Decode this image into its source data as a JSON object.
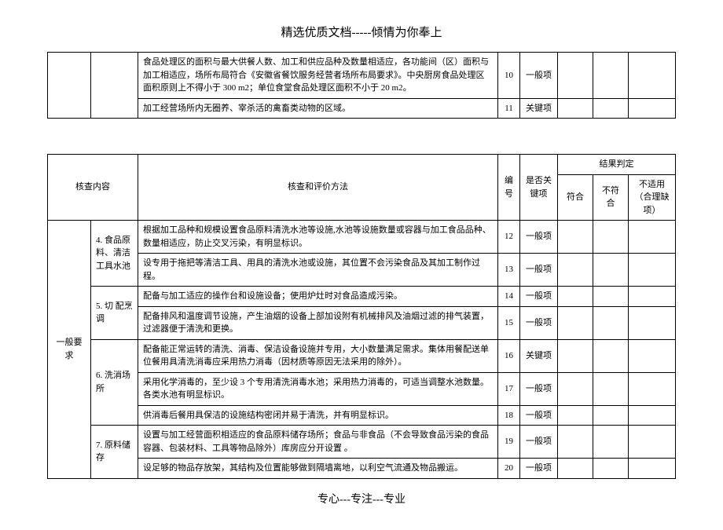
{
  "header": "精选优质文档-----倾情为你奉上",
  "footer": "专心---专注---专业",
  "table1": {
    "rows": [
      {
        "method": "食品处理区的面积与最大供餐人数、加工和供应品种及数量相适应，各功能间（区）面积与加工相适应，场所布局符合《安徽省餐饮服务经营者场所布局要求》。中央厨房食品处理区面积原则上不得小于 300 m2；单位食堂食品处理区面积不小于 20 m2。",
        "num": "10",
        "key": "一般项"
      },
      {
        "method": "加工经营场所内无圈养、宰杀活的禽畜类动物的区域。",
        "num": "11",
        "key": "关键项"
      }
    ]
  },
  "table2": {
    "head": {
      "content": "核查内容",
      "method": "核查和评价方法",
      "num": "编号",
      "key": "是否关键项",
      "result": "结果判定",
      "r1": "符合",
      "r2": "不符合",
      "r3": "不适用（合理缺项）"
    },
    "cat": "一般要求",
    "groups": [
      {
        "sub": "4. 食品原料、清洁工具水池",
        "rows": [
          {
            "method": "根据加工品种和规模设置食品原料清洗水池等设施,水池等设施数量或容器与加工食品品种、数量相适应，防止交叉污染，有明显标识。",
            "num": "12",
            "key": "一般项"
          },
          {
            "method": "设专用于拖把等清洁工具、用具的清洗水池或设施，其位置不会污染食品及其加工制作过程。",
            "num": "13",
            "key": "一般项"
          }
        ]
      },
      {
        "sub": "5. 切 配烹调",
        "rows": [
          {
            "method": "配备与加工适应的操作台和设施设备；使用炉灶时对食品造成污染。",
            "num": "14",
            "key": "一般项"
          },
          {
            "method": "配备排风和温度调节设施，产生油烟的设备上部加设附有机械排风及油烟过滤的排气装置，过滤器便于清洗和更换。",
            "num": "15",
            "key": "一般项"
          }
        ]
      },
      {
        "sub": "6. 洗消场所",
        "rows": [
          {
            "method": "配备能正常运转的清洗、消毒、保洁设备设施并专用，大小数量满足需求。集体用餐配送单位餐用具清洗消毒应采用热力消毒（因材质等原因无法采用的除外）。",
            "num": "16",
            "key": "关键项"
          },
          {
            "method": "采用化学消毒的，至少设 3 个专用清洗消毒水池；采用热力消毒的，可适当调整水池数量。各类水池有明显标识。",
            "num": "17",
            "key": "一般项"
          },
          {
            "method": "供消毒后餐用具保洁的设施结构密闭并易于清洗，并有明显标识。",
            "num": "18",
            "key": "一般项"
          }
        ]
      },
      {
        "sub": "7. 原料储存",
        "rows": [
          {
            "method": "设置与加工经营面积相适应的食品原料储存场所；食品与非食品（不会导致食品污染的食品容器、包装材料、工具等物品除外）库房应分开设置 。",
            "num": "19",
            "key": "一般项"
          },
          {
            "method": "设足够的物品存放架，其结构及位置能够做到隔墙离地，以利空气流通及物品搬运。",
            "num": "20",
            "key": "一般项"
          }
        ]
      }
    ]
  }
}
